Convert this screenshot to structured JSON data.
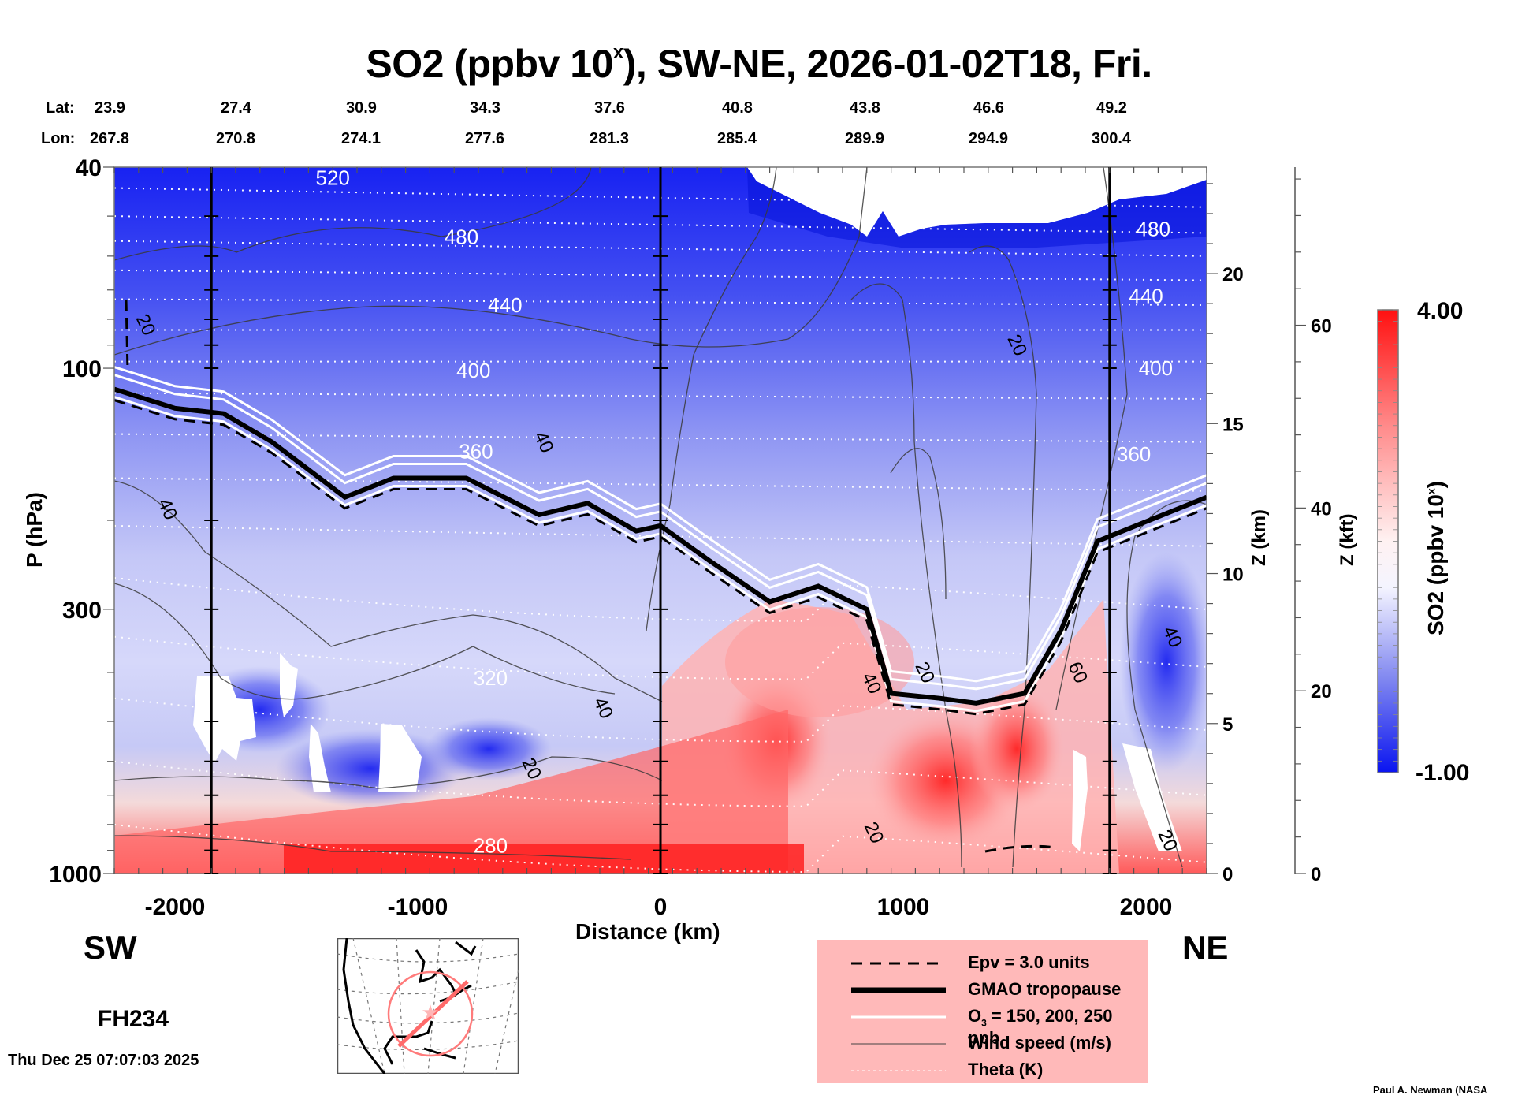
{
  "chart_data": {
    "type": "heatmap",
    "title": "SO2 (ppbv 10^x), SW-NE, 2026-01-02T18, Fri.",
    "title_parts": {
      "main": "SO2 (ppbv 10",
      "sup": "x",
      "rest": "), SW-NE, 2026-01-02T18, Fri."
    },
    "xlabel": "Distance (km)",
    "ylabel": "P (hPa)",
    "y2label": "Z (km)",
    "y3label": "Z (kft)",
    "colorbar_label": "SO2 (ppbv 10^x)",
    "colorbar_label_parts": {
      "main": "SO2 (ppbv 10",
      "sup": "x",
      "rest": ")"
    },
    "xlim": [
      -2250,
      2250
    ],
    "ylim_hpa": [
      1000,
      40
    ],
    "x_ticks": [
      -2000,
      -1000,
      0,
      1000,
      2000
    ],
    "x_tick_labels": [
      "-2000",
      "-1000",
      "0",
      "1000",
      "2000"
    ],
    "y_ticks_hpa": [
      40,
      100,
      300,
      1000
    ],
    "y_tick_labels": [
      "40",
      "100",
      "300",
      "1000"
    ],
    "z_km_ticks": [
      0,
      5,
      10,
      15,
      20
    ],
    "z_kft_ticks": [
      0,
      20,
      40,
      60
    ],
    "colorbar": {
      "min": -1.0,
      "max": 4.0,
      "min_label": "-1.00",
      "max_label": "4.00",
      "low_color": "#0a14f0",
      "mid_color": "#ffffff",
      "high_color": "#ff1010"
    },
    "vertical_markers_km": [
      -1850,
      0,
      1850
    ],
    "lat_label": "Lat:",
    "lon_label": "Lon:",
    "lat": [
      "23.9",
      "27.4",
      "30.9",
      "34.3",
      "37.6",
      "40.8",
      "43.8",
      "46.6",
      "49.2"
    ],
    "lon": [
      "267.8",
      "270.8",
      "274.1",
      "277.6",
      "281.3",
      "285.4",
      "289.9",
      "294.9",
      "300.4"
    ],
    "theta_labels": [
      {
        "value": "520",
        "x_km": -1350,
        "p_hpa": 42
      },
      {
        "value": "480",
        "x_km": -820,
        "p_hpa": 55
      },
      {
        "value": "480",
        "x_km": 2030,
        "p_hpa": 53
      },
      {
        "value": "440",
        "x_km": -640,
        "p_hpa": 75
      },
      {
        "value": "440",
        "x_km": 2000,
        "p_hpa": 72
      },
      {
        "value": "400",
        "x_km": -770,
        "p_hpa": 101
      },
      {
        "value": "400",
        "x_km": 2040,
        "p_hpa": 100
      },
      {
        "value": "360",
        "x_km": -760,
        "p_hpa": 146
      },
      {
        "value": "360",
        "x_km": 1950,
        "p_hpa": 148
      },
      {
        "value": "320",
        "x_km": -700,
        "p_hpa": 410
      },
      {
        "value": "280",
        "x_km": -700,
        "p_hpa": 880
      }
    ],
    "wind_labels": [
      {
        "value": "20",
        "x_km": -2120,
        "p_hpa": 82
      },
      {
        "value": "40",
        "x_km": -2030,
        "p_hpa": 190
      },
      {
        "value": "40",
        "x_km": -480,
        "p_hpa": 140
      },
      {
        "value": "20",
        "x_km": 1470,
        "p_hpa": 90
      },
      {
        "value": "40",
        "x_km": -235,
        "p_hpa": 470
      },
      {
        "value": "20",
        "x_km": -530,
        "p_hpa": 620
      },
      {
        "value": "40",
        "x_km": 870,
        "p_hpa": 420
      },
      {
        "value": "20",
        "x_km": 1090,
        "p_hpa": 400
      },
      {
        "value": "60",
        "x_km": 1720,
        "p_hpa": 400
      },
      {
        "value": "40",
        "x_km": 2110,
        "p_hpa": 340
      },
      {
        "value": "20",
        "x_km": 880,
        "p_hpa": 830
      },
      {
        "value": "20",
        "x_km": 2090,
        "p_hpa": 860
      }
    ],
    "tropopause_km_hpa": [
      [
        -2250,
        110
      ],
      [
        -2000,
        120
      ],
      [
        -1800,
        123
      ],
      [
        -1600,
        140
      ],
      [
        -1300,
        180
      ],
      [
        -1100,
        165
      ],
      [
        -800,
        165
      ],
      [
        -500,
        195
      ],
      [
        -300,
        185
      ],
      [
        -100,
        210
      ],
      [
        0,
        205
      ],
      [
        200,
        240
      ],
      [
        450,
        290
      ],
      [
        650,
        270
      ],
      [
        850,
        300
      ],
      [
        950,
        440
      ],
      [
        1150,
        450
      ],
      [
        1300,
        460
      ],
      [
        1500,
        440
      ],
      [
        1650,
        330
      ],
      [
        1800,
        220
      ],
      [
        2250,
        180
      ]
    ],
    "annotations": {
      "left_direction": "SW",
      "right_direction": "NE",
      "forecast_hour": "FH234",
      "timestamp": "Thu Dec 25 07:07:03 2025",
      "credit": "Paul A. Newman (NASA"
    },
    "legend": [
      {
        "label": "Epv = 3.0 units",
        "style": "dashed-black"
      },
      {
        "label": "GMAO tropopause",
        "style": "thick-black"
      },
      {
        "label_main": "O",
        "label_sub": "3",
        "label_rest": " = 150, 200, 250 ppb",
        "style": "white"
      },
      {
        "label": "Wind speed (m/s)",
        "style": "thin-gray"
      },
      {
        "label": "Theta (K)",
        "style": "dotted-white"
      }
    ],
    "legend_placement": "bottom-right"
  }
}
